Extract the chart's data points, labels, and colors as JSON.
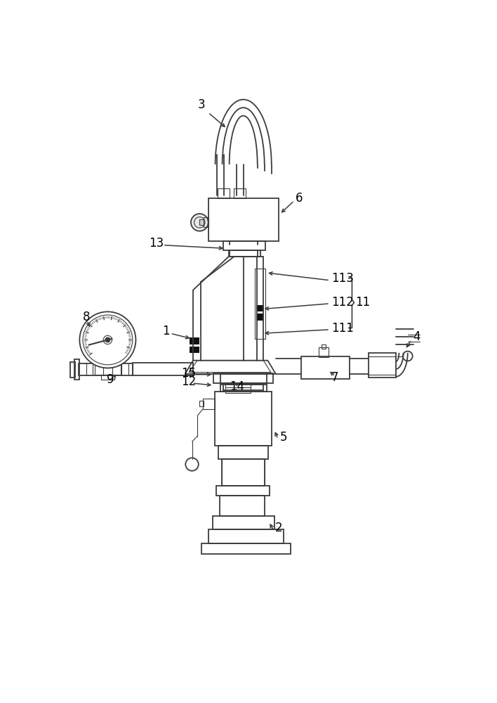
{
  "bg": "#ffffff",
  "lc": "#3c3c3c",
  "lw": 1.3,
  "tlw": 0.8,
  "fig_w": 7.08,
  "fig_h": 10.0
}
